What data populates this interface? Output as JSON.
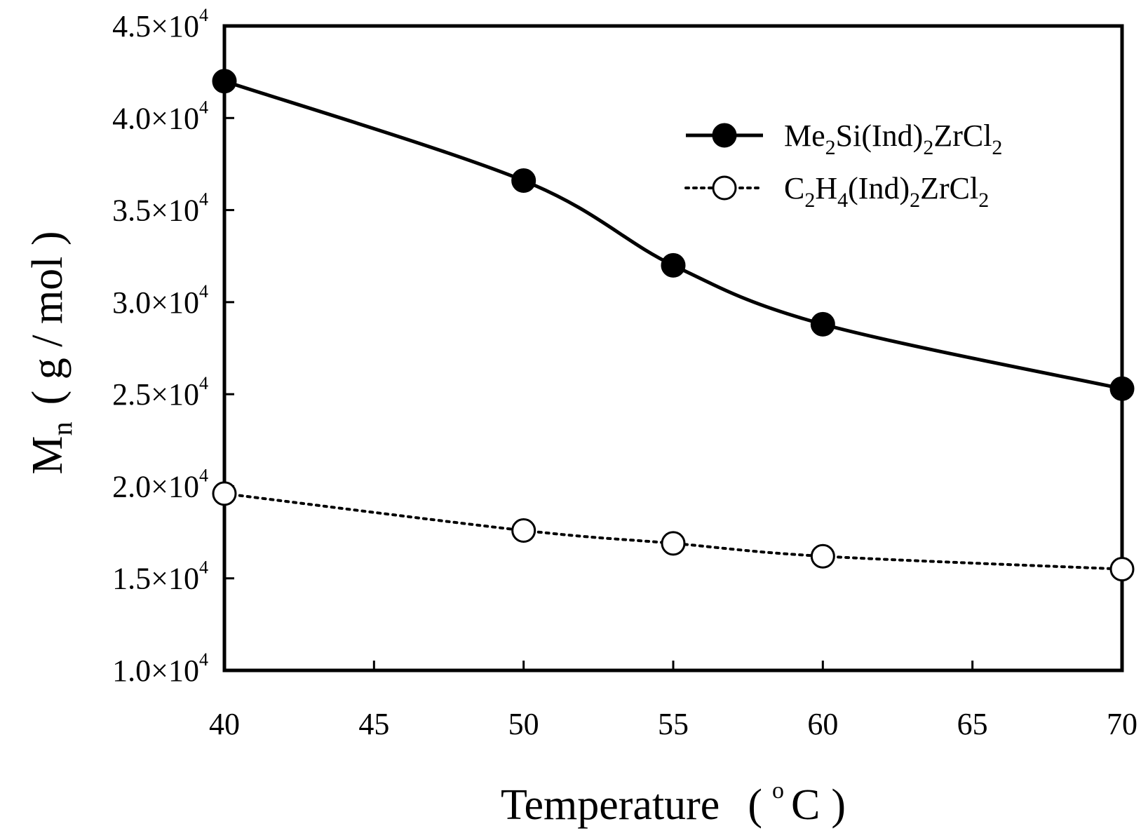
{
  "chart_data": {
    "type": "line",
    "title": "",
    "xlabel": "Temperature",
    "xlabel_unit_open": "(",
    "xlabel_unit_deg": "o",
    "xlabel_unit": "C",
    "xlabel_unit_close": ")",
    "ylabel_main": "M",
    "ylabel_sub": "n",
    "ylabel_unit": "( g / mol )",
    "xlim": [
      40,
      70
    ],
    "ylim": [
      10000,
      45000
    ],
    "x_ticks": [
      {
        "value": 40,
        "label": "40"
      },
      {
        "value": 45,
        "label": "45"
      },
      {
        "value": 50,
        "label": "50"
      },
      {
        "value": 55,
        "label": "55"
      },
      {
        "value": 60,
        "label": "60"
      },
      {
        "value": 65,
        "label": "65"
      },
      {
        "value": 70,
        "label": "70"
      }
    ],
    "y_ticks": [
      {
        "value": 10000,
        "mantissa": "1.0",
        "base": "×10",
        "exp": "4"
      },
      {
        "value": 15000,
        "mantissa": "1.5",
        "base": "×10",
        "exp": "4"
      },
      {
        "value": 20000,
        "mantissa": "2.0",
        "base": "×10",
        "exp": "4"
      },
      {
        "value": 25000,
        "mantissa": "2.5",
        "base": "×10",
        "exp": "4"
      },
      {
        "value": 30000,
        "mantissa": "3.0",
        "base": "×10",
        "exp": "4"
      },
      {
        "value": 35000,
        "mantissa": "3.5",
        "base": "×10",
        "exp": "4"
      },
      {
        "value": 40000,
        "mantissa": "4.0",
        "base": "×10",
        "exp": "4"
      },
      {
        "value": 45000,
        "mantissa": "4.5",
        "base": "×10",
        "exp": "4"
      }
    ],
    "grid": false,
    "legend_position": "top-right",
    "series": [
      {
        "name": "Me2Si(Ind)2ZrCl2",
        "legend_parts": [
          {
            "t": "Me",
            "sub": false
          },
          {
            "t": "2",
            "sub": true
          },
          {
            "t": "Si(Ind)",
            "sub": false
          },
          {
            "t": "2",
            "sub": true
          },
          {
            "t": "ZrCl",
            "sub": false
          },
          {
            "t": "2",
            "sub": true
          }
        ],
        "marker": "filled-circle",
        "line_style": "solid",
        "color": "#000000",
        "x": [
          40,
          50,
          55,
          60,
          70
        ],
        "y": [
          42000,
          36600,
          32000,
          28800,
          25300
        ]
      },
      {
        "name": "C2H4(Ind)2ZrCl2",
        "legend_parts": [
          {
            "t": "C",
            "sub": false
          },
          {
            "t": "2",
            "sub": true
          },
          {
            "t": "H",
            "sub": false
          },
          {
            "t": "4",
            "sub": true
          },
          {
            "t": "(Ind)",
            "sub": false
          },
          {
            "t": "2",
            "sub": true
          },
          {
            "t": "ZrCl",
            "sub": false
          },
          {
            "t": "2",
            "sub": true
          }
        ],
        "marker": "open-circle",
        "line_style": "dotted",
        "color": "#000000",
        "x": [
          40,
          50,
          55,
          60,
          70
        ],
        "y": [
          19600,
          17600,
          16900,
          16200,
          15500
        ]
      }
    ]
  }
}
